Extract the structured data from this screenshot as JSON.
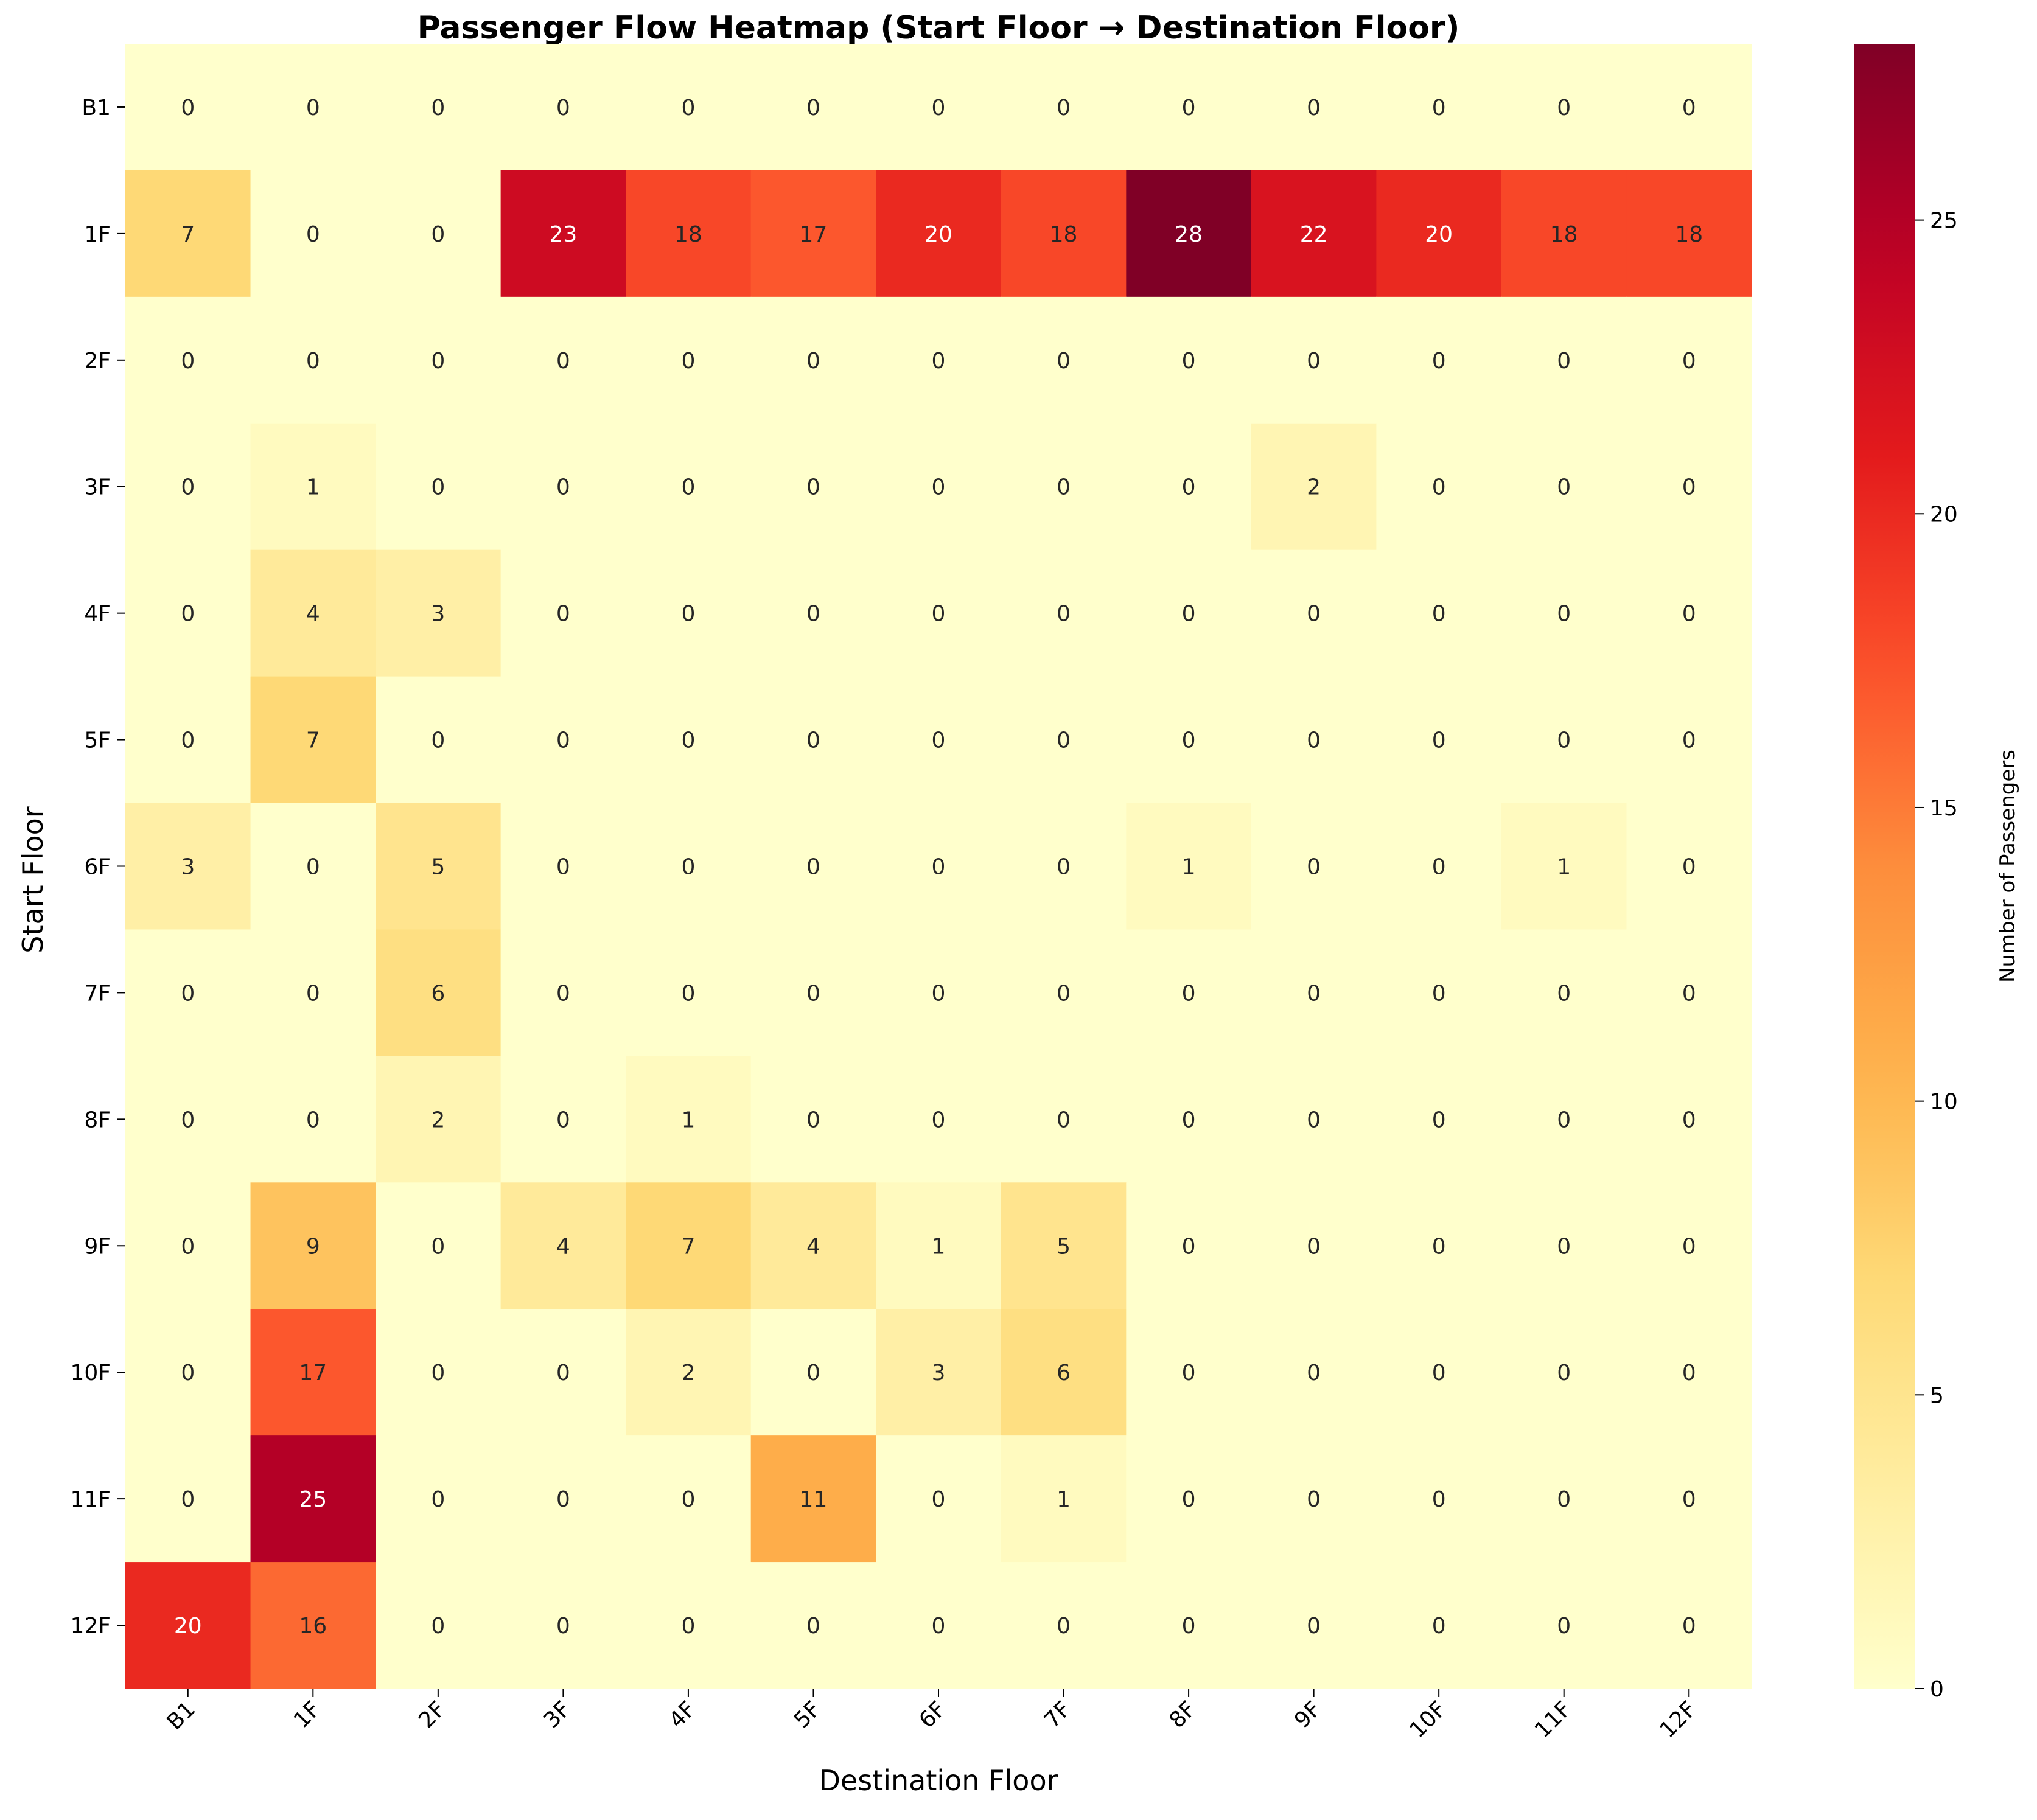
{
  "chart_data": {
    "type": "heatmap",
    "title": "Passenger Flow Heatmap (Start Floor → Destination Floor)",
    "xlabel": "Destination Floor",
    "ylabel": "Start Floor",
    "x_categories": [
      "B1",
      "1F",
      "2F",
      "3F",
      "4F",
      "5F",
      "6F",
      "7F",
      "8F",
      "9F",
      "10F",
      "11F",
      "12F"
    ],
    "y_categories": [
      "B1",
      "1F",
      "2F",
      "3F",
      "4F",
      "5F",
      "6F",
      "7F",
      "8F",
      "9F",
      "10F",
      "11F",
      "12F"
    ],
    "values": [
      [
        0,
        0,
        0,
        0,
        0,
        0,
        0,
        0,
        0,
        0,
        0,
        0,
        0
      ],
      [
        7,
        0,
        0,
        23,
        18,
        17,
        20,
        18,
        28,
        22,
        20,
        18,
        18
      ],
      [
        0,
        0,
        0,
        0,
        0,
        0,
        0,
        0,
        0,
        0,
        0,
        0,
        0
      ],
      [
        0,
        1,
        0,
        0,
        0,
        0,
        0,
        0,
        0,
        2,
        0,
        0,
        0
      ],
      [
        0,
        4,
        3,
        0,
        0,
        0,
        0,
        0,
        0,
        0,
        0,
        0,
        0
      ],
      [
        0,
        7,
        0,
        0,
        0,
        0,
        0,
        0,
        0,
        0,
        0,
        0,
        0
      ],
      [
        3,
        0,
        5,
        0,
        0,
        0,
        0,
        0,
        1,
        0,
        0,
        1,
        0
      ],
      [
        0,
        0,
        6,
        0,
        0,
        0,
        0,
        0,
        0,
        0,
        0,
        0,
        0
      ],
      [
        0,
        0,
        2,
        0,
        1,
        0,
        0,
        0,
        0,
        0,
        0,
        0,
        0
      ],
      [
        0,
        9,
        0,
        4,
        7,
        4,
        1,
        5,
        0,
        0,
        0,
        0,
        0
      ],
      [
        0,
        17,
        0,
        0,
        2,
        0,
        3,
        6,
        0,
        0,
        0,
        0,
        0
      ],
      [
        0,
        25,
        0,
        0,
        0,
        11,
        0,
        1,
        0,
        0,
        0,
        0,
        0
      ],
      [
        20,
        16,
        0,
        0,
        0,
        0,
        0,
        0,
        0,
        0,
        0,
        0,
        0
      ]
    ],
    "value_range": [
      0,
      28
    ],
    "colormap": "YlOrRd",
    "colorbar": {
      "label": "Number of Passengers",
      "ticks": [
        0,
        5,
        10,
        15,
        20,
        25
      ]
    },
    "annotations": true
  }
}
